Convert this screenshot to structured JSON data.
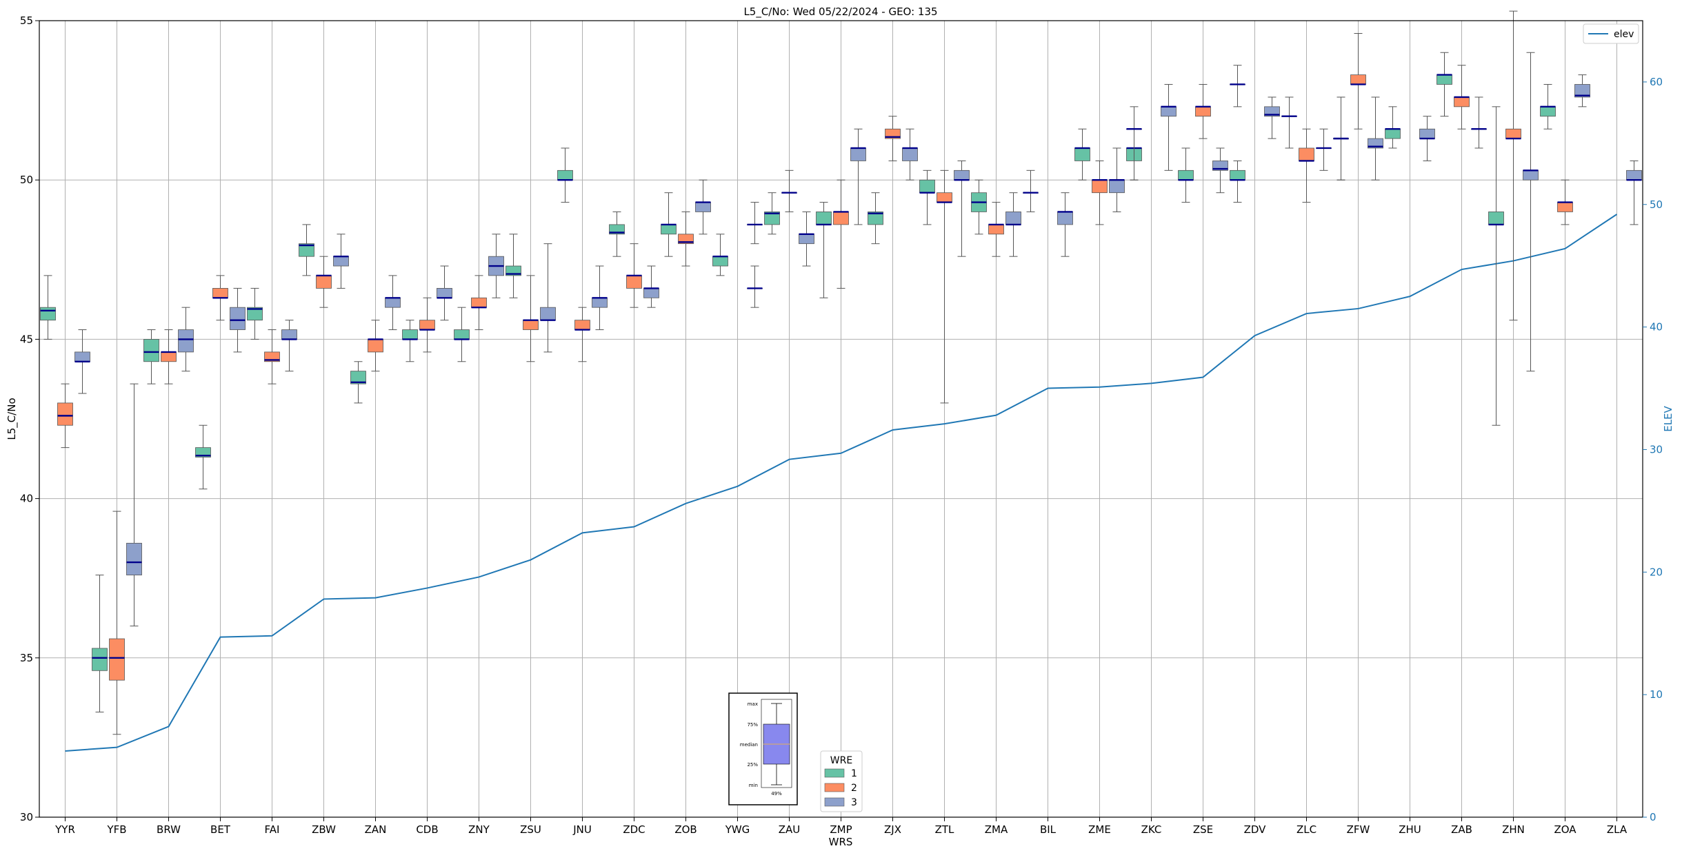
{
  "chart_data": {
    "type": "box",
    "title": "L5_C/No: Wed 05/22/2024 - GEO: 135",
    "xlabel": "WRS",
    "ylabel": "L5_C/No",
    "y2label": "ELEV",
    "ylim": [
      30,
      55
    ],
    "y2lim": [
      0,
      65
    ],
    "yticks": [
      30,
      35,
      40,
      45,
      50,
      55
    ],
    "y2ticks": [
      0,
      10,
      20,
      30,
      40,
      50,
      60
    ],
    "grid": true,
    "categories": [
      "YYR",
      "YFB",
      "BRW",
      "BET",
      "FAI",
      "ZBW",
      "ZAN",
      "CDB",
      "ZNY",
      "ZSU",
      "JNU",
      "ZDC",
      "ZOB",
      "YWG",
      "ZAU",
      "ZMP",
      "ZJX",
      "ZTL",
      "ZMA",
      "BIL",
      "ZME",
      "ZKC",
      "ZSE",
      "ZDV",
      "ZLC",
      "ZFW",
      "ZHU",
      "ZAB",
      "ZHN",
      "ZOA",
      "ZLA"
    ],
    "box_legend": {
      "title": "WRE",
      "position": "bottom-center",
      "entries": [
        {
          "label": "1",
          "color": "#66c2a5"
        },
        {
          "label": "2",
          "color": "#fc8d62"
        },
        {
          "label": "3",
          "color": "#8da0cb"
        }
      ]
    },
    "line_legend": {
      "label": "elev",
      "color": "#1f77b4",
      "position": "top-right"
    },
    "inset": {
      "labels": [
        "max",
        "75%",
        "median",
        "25%",
        "min"
      ],
      "footer": "49%",
      "box_color": "#8888ee",
      "median_color": "#d2a679"
    },
    "elev": [
      5.4,
      5.7,
      7.4,
      14.7,
      14.8,
      17.8,
      17.9,
      18.7,
      19.6,
      21.0,
      23.2,
      23.7,
      25.6,
      27.0,
      29.2,
      29.7,
      31.6,
      32.1,
      32.8,
      35.0,
      35.1,
      35.4,
      35.9,
      39.3,
      41.1,
      41.5,
      42.5,
      44.7,
      45.4,
      46.4,
      49.2
    ],
    "box_series": [
      {
        "wre": "1",
        "color": "#66c2a5",
        "boxes": [
          {
            "cat": "YYR",
            "min": 45.0,
            "q1": 45.6,
            "median": 45.9,
            "q3": 46.0,
            "max": 47.0
          },
          {
            "cat": "YFB",
            "min": 33.3,
            "q1": 34.6,
            "median": 35.0,
            "q3": 35.3,
            "max": 37.6
          },
          {
            "cat": "BRW",
            "min": 43.6,
            "q1": 44.3,
            "median": 44.6,
            "q3": 45.0,
            "max": 45.3
          },
          {
            "cat": "BET",
            "min": 40.3,
            "q1": 41.3,
            "median": 41.35,
            "q3": 41.6,
            "max": 42.3
          },
          {
            "cat": "FAI",
            "min": 45.0,
            "q1": 45.6,
            "median": 45.95,
            "q3": 46.0,
            "max": 46.6
          },
          {
            "cat": "ZBW",
            "min": 47.0,
            "q1": 47.6,
            "median": 47.95,
            "q3": 48.0,
            "max": 48.6
          },
          {
            "cat": "ZAN",
            "min": 43.0,
            "q1": 43.6,
            "median": 43.65,
            "q3": 44.0,
            "max": 44.3
          },
          {
            "cat": "CDB",
            "min": 44.3,
            "q1": 45.0,
            "median": 45.0,
            "q3": 45.3,
            "max": 45.6
          },
          {
            "cat": "ZNY",
            "min": 44.3,
            "q1": 45.0,
            "median": 45.0,
            "q3": 45.3,
            "max": 46.0
          },
          {
            "cat": "ZSU",
            "min": 46.3,
            "q1": 47.0,
            "median": 47.05,
            "q3": 47.3,
            "max": 48.3
          },
          {
            "cat": "JNU",
            "min": 49.3,
            "q1": 50.0,
            "median": 50.0,
            "q3": 50.3,
            "max": 51.0
          },
          {
            "cat": "ZDC",
            "min": 47.6,
            "q1": 48.3,
            "median": 48.35,
            "q3": 48.6,
            "max": 49.0
          },
          {
            "cat": "ZOB",
            "min": 47.6,
            "q1": 48.3,
            "median": 48.6,
            "q3": 48.6,
            "max": 49.6
          },
          {
            "cat": "YWG",
            "min": 47.0,
            "q1": 47.3,
            "median": 47.6,
            "q3": 47.6,
            "max": 48.3
          },
          {
            "cat": "ZAU",
            "min": 48.3,
            "q1": 48.6,
            "median": 48.95,
            "q3": 49.0,
            "max": 49.6
          },
          {
            "cat": "ZMP",
            "min": 46.3,
            "q1": 48.6,
            "median": 48.6,
            "q3": 49.0,
            "max": 49.3
          },
          {
            "cat": "ZJX",
            "min": 48.0,
            "q1": 48.6,
            "median": 48.95,
            "q3": 49.0,
            "max": 49.6
          },
          {
            "cat": "ZTL",
            "min": 48.6,
            "q1": 49.6,
            "median": 49.6,
            "q3": 50.0,
            "max": 50.3
          },
          {
            "cat": "ZMA",
            "min": 48.3,
            "q1": 49.0,
            "median": 49.3,
            "q3": 49.6,
            "max": 50.0
          },
          {
            "cat": "BIL",
            "min": 49.0,
            "q1": 49.6,
            "median": 49.6,
            "q3": 49.6,
            "max": 50.3
          },
          {
            "cat": "ZME",
            "min": 50.0,
            "q1": 50.6,
            "median": 51.0,
            "q3": 51.0,
            "max": 51.6
          },
          {
            "cat": "ZKC",
            "min": 50.0,
            "q1": 50.6,
            "median": 51.0,
            "q3": 51.0,
            "max": 51.6
          },
          {
            "cat": "ZSE",
            "min": 49.3,
            "q1": 50.0,
            "median": 50.0,
            "q3": 50.3,
            "max": 51.0
          },
          {
            "cat": "ZDV",
            "min": 49.3,
            "q1": 50.0,
            "median": 50.0,
            "q3": 50.3,
            "max": 50.6
          },
          {
            "cat": "ZLC",
            "min": 51.0,
            "q1": 52.0,
            "median": 52.0,
            "q3": 52.0,
            "max": 52.6
          },
          {
            "cat": "ZFW",
            "min": 50.0,
            "q1": 51.3,
            "median": 51.3,
            "q3": 51.3,
            "max": 52.6
          },
          {
            "cat": "ZHU",
            "min": 51.0,
            "q1": 51.3,
            "median": 51.6,
            "q3": 51.6,
            "max": 52.3
          },
          {
            "cat": "ZAB",
            "min": 52.0,
            "q1": 53.0,
            "median": 53.3,
            "q3": 53.3,
            "max": 54.0
          },
          {
            "cat": "ZHN",
            "min": 42.3,
            "q1": 48.6,
            "median": 48.6,
            "q3": 49.0,
            "max": 52.3
          },
          {
            "cat": "ZOA",
            "min": 51.6,
            "q1": 52.0,
            "median": 52.3,
            "q3": 52.3,
            "max": 53.0
          }
        ]
      },
      {
        "wre": "2",
        "color": "#fc8d62",
        "boxes": [
          {
            "cat": "YYR",
            "min": 41.6,
            "q1": 42.3,
            "median": 42.6,
            "q3": 43.0,
            "max": 43.6
          },
          {
            "cat": "YFB",
            "min": 32.6,
            "q1": 34.3,
            "median": 35.0,
            "q3": 35.6,
            "max": 39.6
          },
          {
            "cat": "BRW",
            "min": 43.6,
            "q1": 44.3,
            "median": 44.6,
            "q3": 44.6,
            "max": 45.3
          },
          {
            "cat": "BET",
            "min": 45.6,
            "q1": 46.3,
            "median": 46.3,
            "q3": 46.6,
            "max": 47.0
          },
          {
            "cat": "FAI",
            "min": 43.6,
            "q1": 44.3,
            "median": 44.35,
            "q3": 44.6,
            "max": 45.3
          },
          {
            "cat": "ZBW",
            "min": 46.0,
            "q1": 46.6,
            "median": 47.0,
            "q3": 47.0,
            "max": 47.6
          },
          {
            "cat": "ZAN",
            "min": 44.0,
            "q1": 44.6,
            "median": 45.0,
            "q3": 45.0,
            "max": 45.6
          },
          {
            "cat": "CDB",
            "min": 44.6,
            "q1": 45.3,
            "median": 45.3,
            "q3": 45.6,
            "max": 46.3
          },
          {
            "cat": "ZNY",
            "min": 45.3,
            "q1": 46.0,
            "median": 46.0,
            "q3": 46.3,
            "max": 47.0
          },
          {
            "cat": "ZSU",
            "min": 44.3,
            "q1": 45.3,
            "median": 45.6,
            "q3": 45.6,
            "max": 47.0
          },
          {
            "cat": "JNU",
            "min": 44.3,
            "q1": 45.3,
            "median": 45.3,
            "q3": 45.6,
            "max": 46.0
          },
          {
            "cat": "ZDC",
            "min": 46.0,
            "q1": 46.6,
            "median": 47.0,
            "q3": 47.0,
            "max": 48.0
          },
          {
            "cat": "ZOB",
            "min": 47.3,
            "q1": 48.0,
            "median": 48.05,
            "q3": 48.3,
            "max": 49.0
          },
          {
            "cat": "ZMP",
            "min": 46.6,
            "q1": 48.6,
            "median": 49.0,
            "q3": 49.0,
            "max": 50.0
          },
          {
            "cat": "ZJX",
            "min": 50.6,
            "q1": 51.3,
            "median": 51.35,
            "q3": 51.6,
            "max": 52.0
          },
          {
            "cat": "ZTL",
            "min": 43.0,
            "q1": 49.3,
            "median": 49.3,
            "q3": 49.6,
            "max": 50.3
          },
          {
            "cat": "ZMA",
            "min": 47.6,
            "q1": 48.3,
            "median": 48.6,
            "q3": 48.6,
            "max": 49.3
          },
          {
            "cat": "ZME",
            "min": 48.6,
            "q1": 49.6,
            "median": 50.0,
            "q3": 50.0,
            "max": 50.6
          },
          {
            "cat": "ZSE",
            "min": 51.3,
            "q1": 52.0,
            "median": 52.3,
            "q3": 52.3,
            "max": 53.0
          },
          {
            "cat": "ZLC",
            "min": 49.3,
            "q1": 50.6,
            "median": 50.6,
            "q3": 51.0,
            "max": 51.6
          },
          {
            "cat": "ZFW",
            "min": 51.6,
            "q1": 53.0,
            "median": 53.0,
            "q3": 53.3,
            "max": 54.6
          },
          {
            "cat": "ZAB",
            "min": 51.6,
            "q1": 52.3,
            "median": 52.6,
            "q3": 52.6,
            "max": 53.6
          },
          {
            "cat": "ZHN",
            "min": 45.6,
            "q1": 51.3,
            "median": 51.3,
            "q3": 51.6,
            "max": 55.3
          },
          {
            "cat": "ZOA",
            "min": 48.6,
            "q1": 49.0,
            "median": 49.3,
            "q3": 49.3,
            "max": 50.0
          }
        ]
      },
      {
        "wre": "3",
        "color": "#8da0cb",
        "boxes": [
          {
            "cat": "YYR",
            "min": 43.3,
            "q1": 44.3,
            "median": 44.3,
            "q3": 44.6,
            "max": 45.3
          },
          {
            "cat": "YFB",
            "min": 36.0,
            "q1": 37.6,
            "median": 38.0,
            "q3": 38.6,
            "max": 43.6
          },
          {
            "cat": "BRW",
            "min": 44.0,
            "q1": 44.6,
            "median": 45.0,
            "q3": 45.3,
            "max": 46.0
          },
          {
            "cat": "BET",
            "min": 44.6,
            "q1": 45.3,
            "median": 45.6,
            "q3": 46.0,
            "max": 46.6
          },
          {
            "cat": "FAI",
            "min": 44.0,
            "q1": 45.0,
            "median": 45.0,
            "q3": 45.3,
            "max": 45.6
          },
          {
            "cat": "ZBW",
            "min": 46.6,
            "q1": 47.3,
            "median": 47.6,
            "q3": 47.6,
            "max": 48.3
          },
          {
            "cat": "ZAN",
            "min": 45.3,
            "q1": 46.0,
            "median": 46.3,
            "q3": 46.3,
            "max": 47.0
          },
          {
            "cat": "CDB",
            "min": 45.6,
            "q1": 46.3,
            "median": 46.3,
            "q3": 46.6,
            "max": 47.3
          },
          {
            "cat": "ZNY",
            "min": 46.3,
            "q1": 47.0,
            "median": 47.3,
            "q3": 47.6,
            "max": 48.3
          },
          {
            "cat": "ZSU",
            "min": 44.6,
            "q1": 45.6,
            "median": 45.6,
            "q3": 46.0,
            "max": 48.0
          },
          {
            "cat": "JNU",
            "min": 45.3,
            "q1": 46.0,
            "median": 46.3,
            "q3": 46.3,
            "max": 47.3
          },
          {
            "cat": "ZDC",
            "min": 46.0,
            "q1": 46.3,
            "median": 46.6,
            "q3": 46.6,
            "max": 47.3
          },
          {
            "cat": "ZOB",
            "min": 48.3,
            "q1": 49.0,
            "median": 49.3,
            "q3": 49.3,
            "max": 50.0
          },
          {
            "cat": "YWG",
            "min": 48.0,
            "q1": 48.6,
            "median": 48.6,
            "q3": 48.6,
            "max": 49.3
          },
          {
            "cat": "ZAU",
            "min": 47.3,
            "q1": 48.0,
            "median": 48.3,
            "q3": 48.3,
            "max": 49.0
          },
          {
            "cat": "ZMP",
            "min": 48.6,
            "q1": 50.6,
            "median": 51.0,
            "q3": 51.0,
            "max": 51.6
          },
          {
            "cat": "ZJX",
            "min": 50.0,
            "q1": 50.6,
            "median": 51.0,
            "q3": 51.0,
            "max": 51.6
          },
          {
            "cat": "ZTL",
            "min": 47.6,
            "q1": 50.0,
            "median": 50.0,
            "q3": 50.3,
            "max": 50.6
          },
          {
            "cat": "ZMA",
            "min": 47.6,
            "q1": 48.6,
            "median": 48.6,
            "q3": 49.0,
            "max": 49.6
          },
          {
            "cat": "BIL",
            "min": 47.6,
            "q1": 48.6,
            "median": 49.0,
            "q3": 49.0,
            "max": 49.6
          },
          {
            "cat": "ZME",
            "min": 49.0,
            "q1": 49.6,
            "median": 50.0,
            "q3": 50.0,
            "max": 51.0
          },
          {
            "cat": "ZKC",
            "min": 50.3,
            "q1": 52.0,
            "median": 52.3,
            "q3": 52.3,
            "max": 53.0
          },
          {
            "cat": "ZSE",
            "min": 49.6,
            "q1": 50.3,
            "median": 50.35,
            "q3": 50.6,
            "max": 51.0
          },
          {
            "cat": "ZDV",
            "min": 51.3,
            "q1": 52.0,
            "median": 52.05,
            "q3": 52.3,
            "max": 52.6
          },
          {
            "cat": "ZLC",
            "min": 50.3,
            "q1": 51.0,
            "median": 51.0,
            "q3": 51.0,
            "max": 51.6
          },
          {
            "cat": "ZFW",
            "min": 50.0,
            "q1": 51.0,
            "median": 51.05,
            "q3": 51.3,
            "max": 52.6
          },
          {
            "cat": "ZHU",
            "min": 50.6,
            "q1": 51.3,
            "median": 51.3,
            "q3": 51.6,
            "max": 52.0
          },
          {
            "cat": "ZAB",
            "min": 51.0,
            "q1": 51.6,
            "median": 51.6,
            "q3": 51.6,
            "max": 52.6
          },
          {
            "cat": "ZHN",
            "min": 44.0,
            "q1": 50.0,
            "median": 50.3,
            "q3": 50.3,
            "max": 54.0
          },
          {
            "cat": "ZOA",
            "min": 52.3,
            "q1": 52.6,
            "median": 52.65,
            "q3": 53.0,
            "max": 53.3
          },
          {
            "cat": "ZLA",
            "min": 48.6,
            "q1": 50.0,
            "median": 50.0,
            "q3": 50.3,
            "max": 50.6
          }
        ]
      }
    ],
    "flat_boxes": [
      {
        "cat": "ZKC",
        "offset": -1,
        "value": 51.6,
        "min": 50.0,
        "max": 52.3
      },
      {
        "cat": "ZDV",
        "offset": -1,
        "value": 53.0,
        "min": 52.3,
        "max": 53.6
      },
      {
        "cat": "ZFW",
        "offset": -1,
        "value": 51.3,
        "min": 50.0,
        "max": 52.6
      },
      {
        "cat": "ZAU",
        "offset": 0,
        "value": 49.6,
        "min": 49.0,
        "max": 50.3
      },
      {
        "cat": "YWG",
        "offset": 1,
        "value": 46.6,
        "min": 46.0,
        "max": 47.3
      }
    ]
  }
}
